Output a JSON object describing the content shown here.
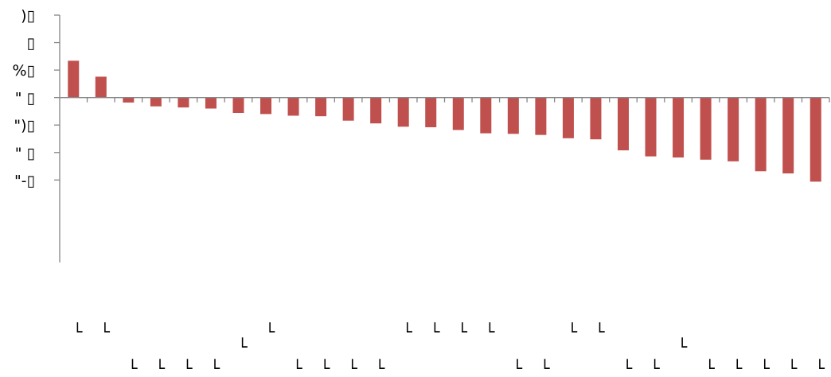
{
  "chart_data": {
    "type": "bar",
    "title": "",
    "xlabel": "",
    "ylabel": "",
    "ylim": [
      -30,
      15
    ],
    "y_ticks": [
      15,
      10,
      5,
      0,
      -5,
      -10,
      -15
    ],
    "y_tick_labels": [
      ")▯",
      "▯",
      "%▯",
      "\" ▯",
      "\")▯",
      "\" ▯",
      "\"-▯"
    ],
    "grid": false,
    "legend": "none",
    "categories": [
      "└",
      "└",
      "└",
      "└",
      "└",
      "└",
      "└",
      "└",
      "└",
      "└",
      "└",
      "└",
      "└",
      "└",
      "└",
      "└",
      "└",
      "└",
      "└",
      "└",
      "└",
      "└",
      "└",
      "└",
      "└",
      "└",
      "└",
      "└"
    ],
    "values": [
      6.7,
      3.8,
      -0.9,
      -1.6,
      -1.8,
      -2.0,
      -2.8,
      -3.0,
      -3.3,
      -3.4,
      -4.2,
      -4.7,
      -5.3,
      -5.4,
      -5.9,
      -6.5,
      -6.6,
      -6.8,
      -7.4,
      -7.6,
      -9.6,
      -10.7,
      -10.9,
      -11.3,
      -11.6,
      -13.4,
      -13.8,
      -15.3
    ],
    "colors": {
      "bar": "#c0504d",
      "axis": "#868686"
    }
  }
}
